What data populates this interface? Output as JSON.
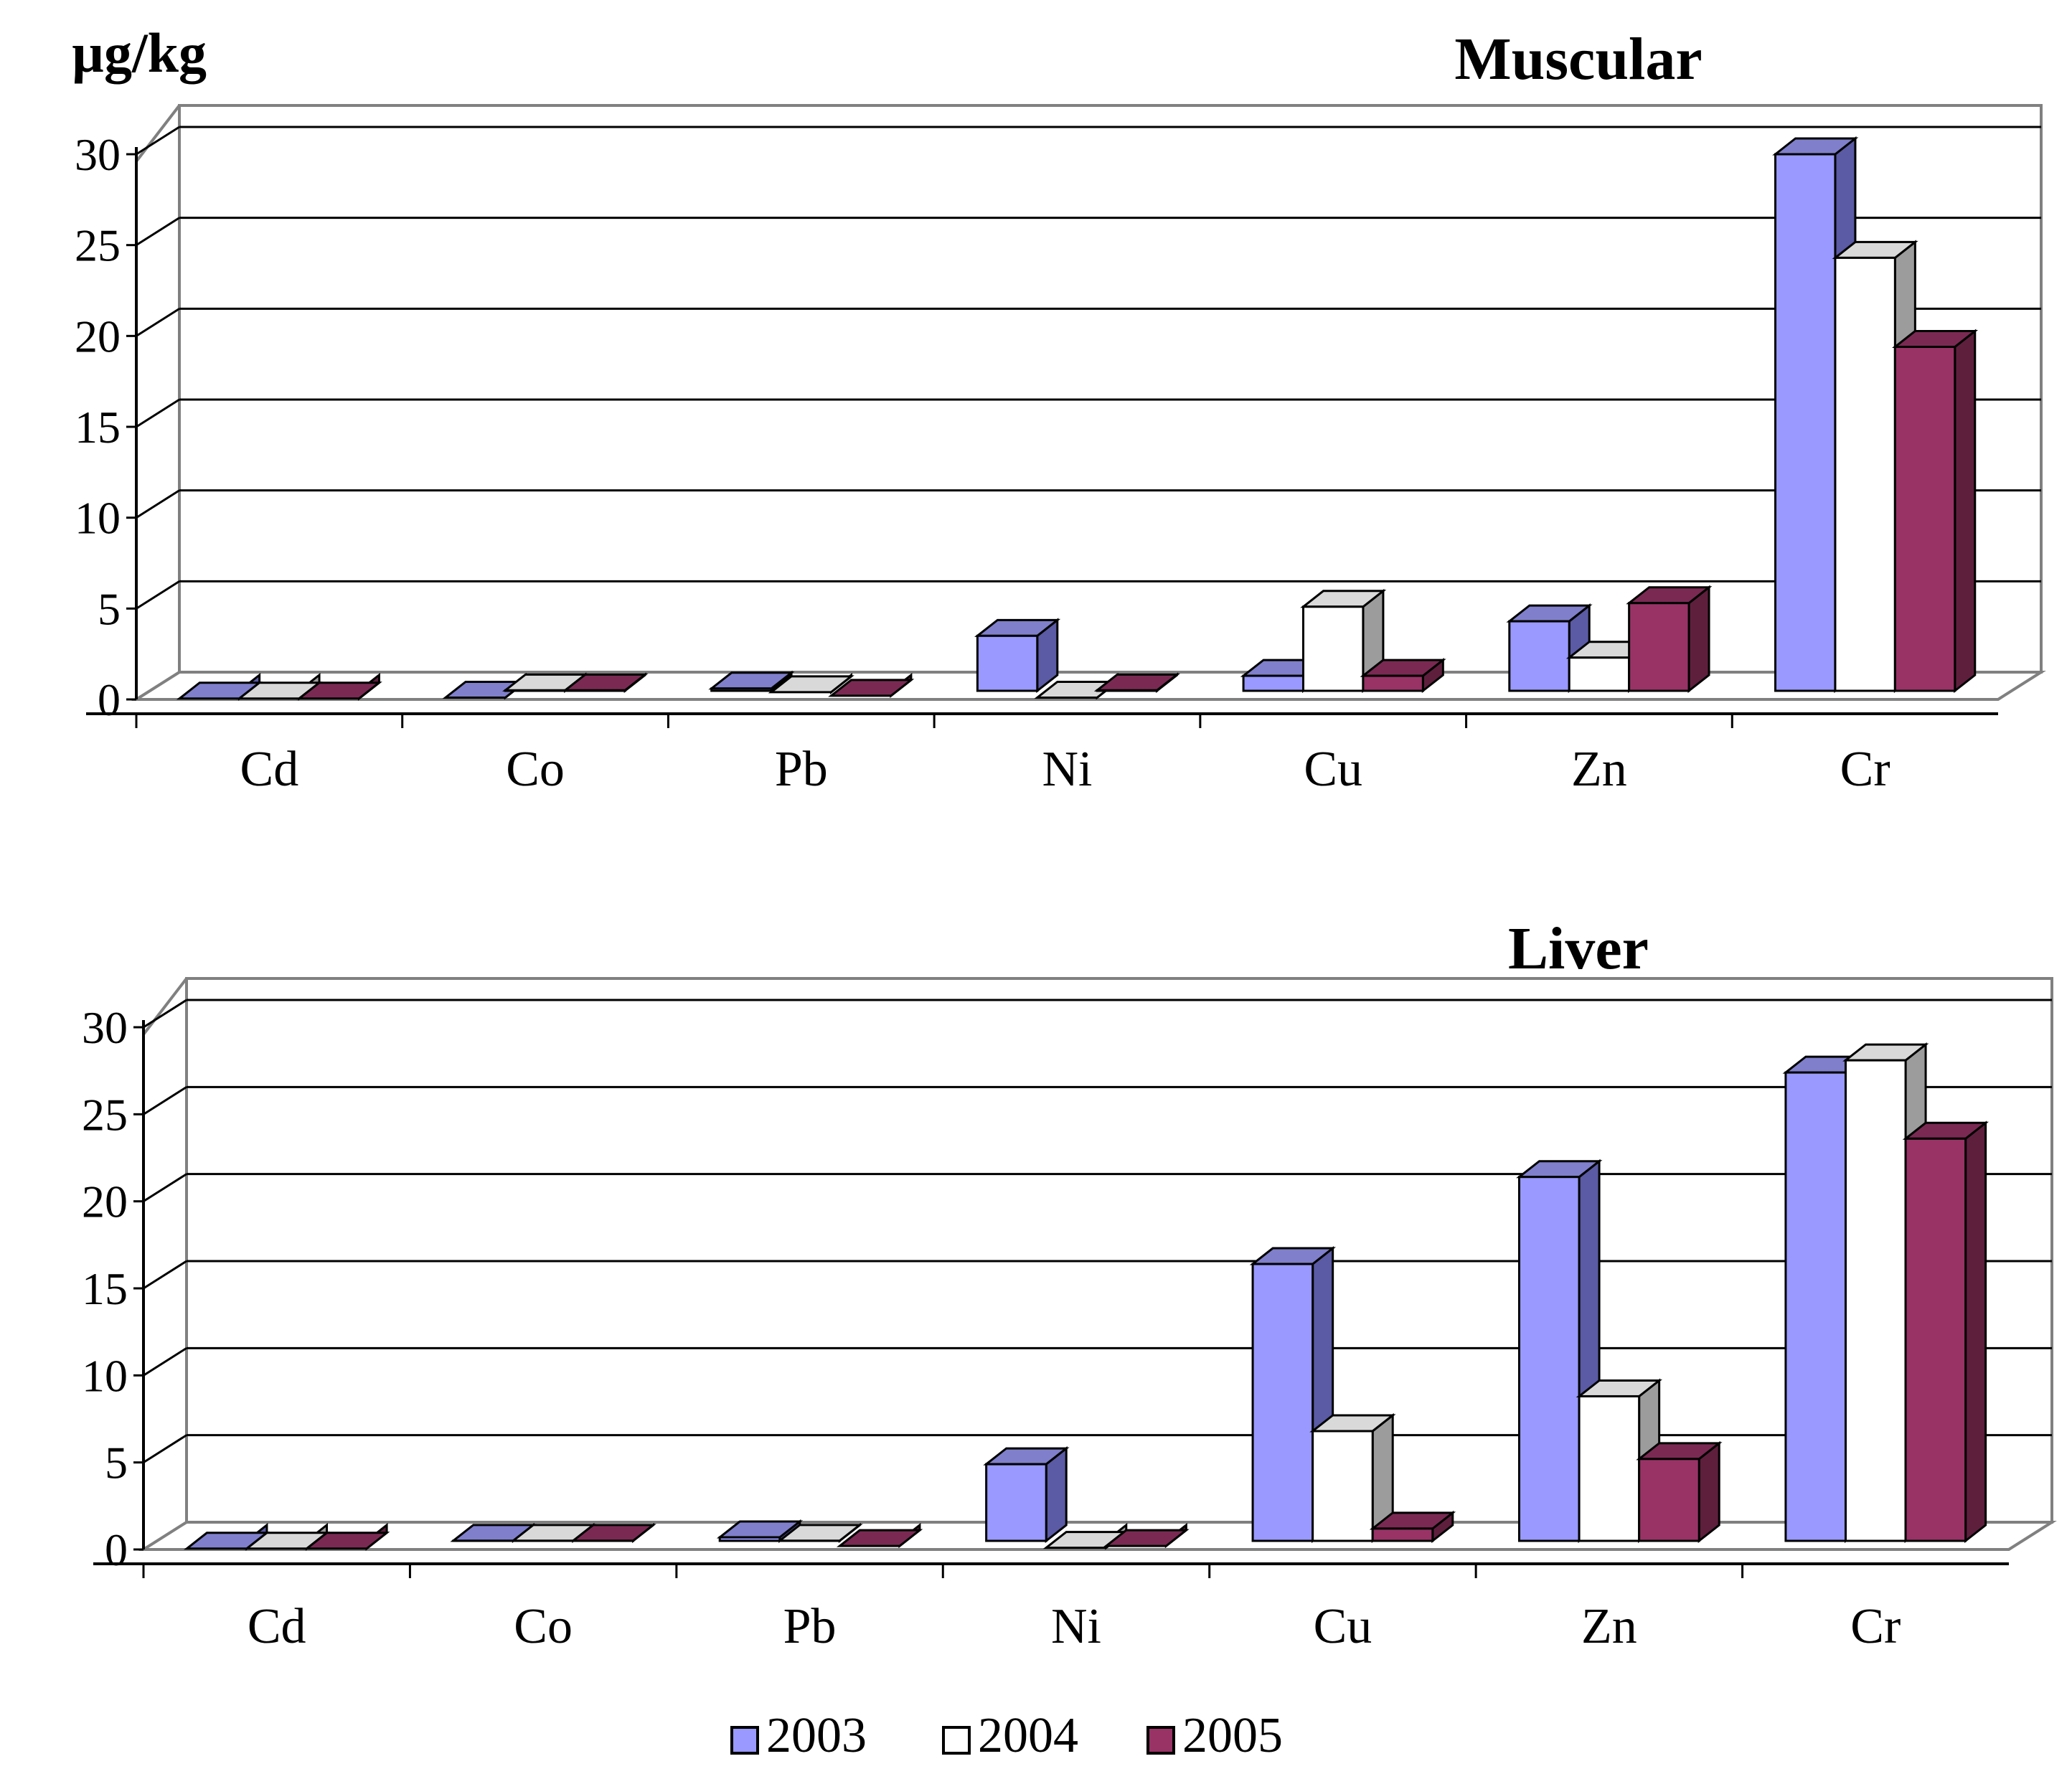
{
  "unit_label": "µg/kg",
  "legend": [
    {
      "label": "2003",
      "color": "#9999ff"
    },
    {
      "label": "2004",
      "color": "#ffffff"
    },
    {
      "label": "2005",
      "color": "#993366"
    }
  ],
  "chart_data": [
    {
      "type": "bar",
      "title": "Muscular",
      "ylabel": "µg/kg",
      "xlabel": "",
      "ylim": [
        0,
        30
      ],
      "yticks": [
        0,
        5,
        10,
        15,
        20,
        25,
        30
      ],
      "categories": [
        "Cd",
        "Co",
        "Pb",
        "Ni",
        "Cu",
        "Zn",
        "Cr"
      ],
      "series": [
        {
          "name": "2003",
          "values": [
            0.05,
            0.1,
            0.6,
            3.5,
            1.3,
            4.3,
            30.0
          ]
        },
        {
          "name": "2004",
          "values": [
            0.05,
            0.5,
            0.4,
            0.1,
            5.1,
            2.3,
            24.3
          ]
        },
        {
          "name": "2005",
          "values": [
            0.05,
            0.5,
            0.2,
            0.5,
            1.3,
            5.3,
            19.4
          ]
        }
      ]
    },
    {
      "type": "bar",
      "title": "Liver",
      "ylabel": "",
      "xlabel": "",
      "ylim": [
        0,
        30
      ],
      "yticks": [
        0,
        5,
        10,
        15,
        20,
        25,
        30
      ],
      "categories": [
        "Cd",
        "Co",
        "Pb",
        "Ni",
        "Cu",
        "Zn",
        "Cr"
      ],
      "series": [
        {
          "name": "2003",
          "values": [
            0.05,
            0.5,
            0.7,
            4.9,
            16.4,
            21.4,
            27.4
          ]
        },
        {
          "name": "2004",
          "values": [
            0.05,
            0.5,
            0.5,
            0.1,
            6.8,
            8.8,
            28.1
          ]
        },
        {
          "name": "2005",
          "values": [
            0.05,
            0.5,
            0.2,
            0.2,
            1.2,
            5.2,
            23.6
          ]
        }
      ]
    }
  ]
}
